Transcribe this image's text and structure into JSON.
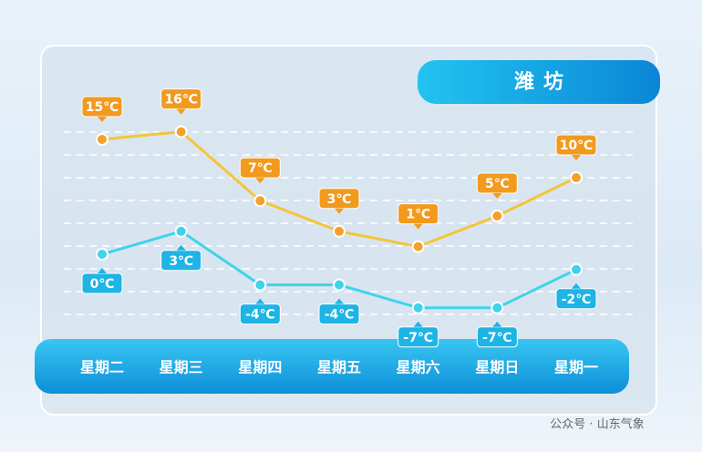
{
  "chart_data": {
    "type": "line",
    "title": "潍坊",
    "categories": [
      "星期二",
      "星期三",
      "星期四",
      "星期五",
      "星期六",
      "星期日",
      "星期一"
    ],
    "series": [
      {
        "color": "#f5c43a",
        "label_color": "#f29a1e",
        "values": [
          15,
          16,
          7,
          3,
          1,
          5,
          10
        ],
        "value_labels": [
          "15℃",
          "16℃",
          "7℃",
          "3℃",
          "1℃",
          "5℃",
          "10℃"
        ]
      },
      {
        "color": "#3fd3ea",
        "label_color": "#1fb4e6",
        "values": [
          0,
          3,
          -4,
          -4,
          -7,
          -7,
          -2
        ],
        "value_labels": [
          "0℃",
          "3℃",
          "-4℃",
          "-4℃",
          "-7℃",
          "-7℃",
          "-2℃"
        ]
      }
    ],
    "ylim": [
      -10,
      20
    ]
  },
  "watermark": "公众号 · 山东气象"
}
